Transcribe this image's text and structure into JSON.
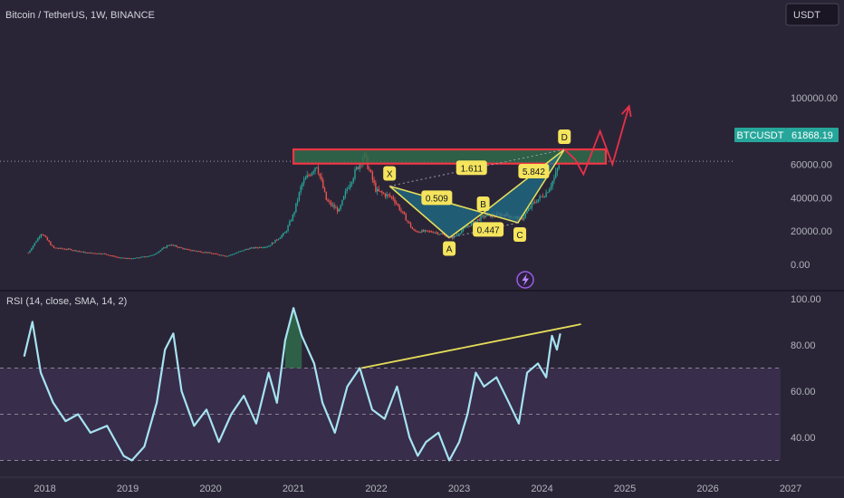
{
  "header": {
    "title": "Bitcoin / TetherUS, 1W, BINANCE",
    "currency_button": "USDT"
  },
  "price_tag": {
    "symbol": "BTCUSDT",
    "value": "61868.19",
    "color": "#26a69a"
  },
  "rsi_title": "RSI (14, close, SMA, 14, 2)",
  "colors": {
    "background": "#2a2536",
    "candle_up": "#26a69a",
    "candle_down": "#ef5350",
    "pattern_fill": "#1f6f8b",
    "pattern_line": "#e6de5a",
    "resistance_box": "#f23645",
    "projection": "#e8304a",
    "rsi_line": "#a6e3f2",
    "rsi_band": "#3a2f4d",
    "trendline": "#e6de5a"
  },
  "icons": {
    "lightning": "lightning-icon"
  },
  "chart_data": [
    {
      "type": "candlestick",
      "title": "Bitcoin / TetherUS, 1W, BINANCE",
      "y_ticks": [
        "100000.00",
        "80000.00",
        "60000.00",
        "40000.00",
        "20000.00",
        "0.00"
      ],
      "ylim": [
        0,
        100000
      ],
      "x_ticks": [
        "2018",
        "2019",
        "2020",
        "2021",
        "2022",
        "2023",
        "2024",
        "2025",
        "2026",
        "2027"
      ],
      "last_price": 61868.19,
      "price_path": [
        [
          2017.8,
          7000
        ],
        [
          2017.96,
          19000
        ],
        [
          2018.1,
          10000
        ],
        [
          2018.3,
          9000
        ],
        [
          2018.5,
          7000
        ],
        [
          2018.7,
          6500
        ],
        [
          2018.9,
          4000
        ],
        [
          2019.05,
          3500
        ],
        [
          2019.3,
          5500
        ],
        [
          2019.5,
          12000
        ],
        [
          2019.7,
          9000
        ],
        [
          2019.95,
          7200
        ],
        [
          2020.2,
          5000
        ],
        [
          2020.45,
          9500
        ],
        [
          2020.7,
          11000
        ],
        [
          2020.9,
          19000
        ],
        [
          2021.0,
          30000
        ],
        [
          2021.1,
          48000
        ],
        [
          2021.28,
          60000
        ],
        [
          2021.4,
          38000
        ],
        [
          2021.55,
          32000
        ],
        [
          2021.65,
          46000
        ],
        [
          2021.85,
          66000
        ],
        [
          2022.0,
          44000
        ],
        [
          2022.2,
          40000
        ],
        [
          2022.45,
          20000
        ],
        [
          2022.7,
          19500
        ],
        [
          2022.92,
          16000
        ],
        [
          2023.1,
          23000
        ],
        [
          2023.3,
          29000
        ],
        [
          2023.55,
          30000
        ],
        [
          2023.75,
          27000
        ],
        [
          2023.9,
          37000
        ],
        [
          2024.05,
          43000
        ],
        [
          2024.15,
          52000
        ],
        [
          2024.22,
          61868
        ]
      ],
      "harmonic_points": [
        {
          "label": "X",
          "x": 2022.16,
          "y": 47000
        },
        {
          "label": "A",
          "x": 2022.88,
          "y": 16000
        },
        {
          "label": "B",
          "x": 2023.29,
          "y": 31000
        },
        {
          "label": "C",
          "x": 2023.71,
          "y": 25000
        },
        {
          "label": "D",
          "x": 2024.27,
          "y": 69000
        }
      ],
      "ratio_labels": [
        {
          "text": "1.611",
          "x": 2023.15,
          "y": 58000
        },
        {
          "text": "0.509",
          "x": 2022.73,
          "y": 40000
        },
        {
          "text": "0.447",
          "x": 2023.35,
          "y": 21000
        },
        {
          "text": "5.842",
          "x": 2023.9,
          "y": 56000
        }
      ],
      "resistance_zone": {
        "x_start": 2021.0,
        "x_end": 2024.77,
        "y_low": 60500,
        "y_high": 69000
      },
      "projection_path": [
        [
          2024.4,
          63000
        ],
        [
          2024.5,
          54000
        ],
        [
          2024.7,
          80000
        ],
        [
          2024.85,
          60000
        ],
        [
          2025.05,
          95000
        ]
      ]
    },
    {
      "type": "line",
      "title": "RSI (14, close, SMA, 14, 2)",
      "y_ticks": [
        "100.00",
        "80.00",
        "60.00",
        "40.00"
      ],
      "ylim": [
        30,
        100
      ],
      "bands": [
        70,
        50,
        30
      ],
      "rsi_path": [
        [
          2017.75,
          75
        ],
        [
          2017.85,
          90
        ],
        [
          2017.95,
          68
        ],
        [
          2018.1,
          55
        ],
        [
          2018.25,
          47
        ],
        [
          2018.4,
          50
        ],
        [
          2018.55,
          42
        ],
        [
          2018.75,
          45
        ],
        [
          2018.95,
          32
        ],
        [
          2019.05,
          30
        ],
        [
          2019.2,
          36
        ],
        [
          2019.35,
          55
        ],
        [
          2019.45,
          78
        ],
        [
          2019.55,
          85
        ],
        [
          2019.65,
          60
        ],
        [
          2019.8,
          45
        ],
        [
          2019.95,
          52
        ],
        [
          2020.1,
          38
        ],
        [
          2020.25,
          50
        ],
        [
          2020.4,
          58
        ],
        [
          2020.55,
          46
        ],
        [
          2020.7,
          68
        ],
        [
          2020.8,
          55
        ],
        [
          2020.9,
          82
        ],
        [
          2021.0,
          96
        ],
        [
          2021.1,
          84
        ],
        [
          2021.25,
          72
        ],
        [
          2021.35,
          55
        ],
        [
          2021.5,
          42
        ],
        [
          2021.65,
          62
        ],
        [
          2021.8,
          70
        ],
        [
          2021.95,
          52
        ],
        [
          2022.1,
          48
        ],
        [
          2022.25,
          62
        ],
        [
          2022.4,
          40
        ],
        [
          2022.5,
          32
        ],
        [
          2022.6,
          38
        ],
        [
          2022.75,
          42
        ],
        [
          2022.88,
          30
        ],
        [
          2023.0,
          38
        ],
        [
          2023.1,
          50
        ],
        [
          2023.2,
          68
        ],
        [
          2023.3,
          62
        ],
        [
          2023.45,
          66
        ],
        [
          2023.6,
          55
        ],
        [
          2023.72,
          46
        ],
        [
          2023.82,
          68
        ],
        [
          2023.95,
          72
        ],
        [
          2024.05,
          66
        ],
        [
          2024.12,
          84
        ],
        [
          2024.18,
          78
        ],
        [
          2024.22,
          85
        ]
      ],
      "trendline": [
        [
          2021.82,
          70
        ],
        [
          2024.47,
          89
        ]
      ]
    }
  ]
}
